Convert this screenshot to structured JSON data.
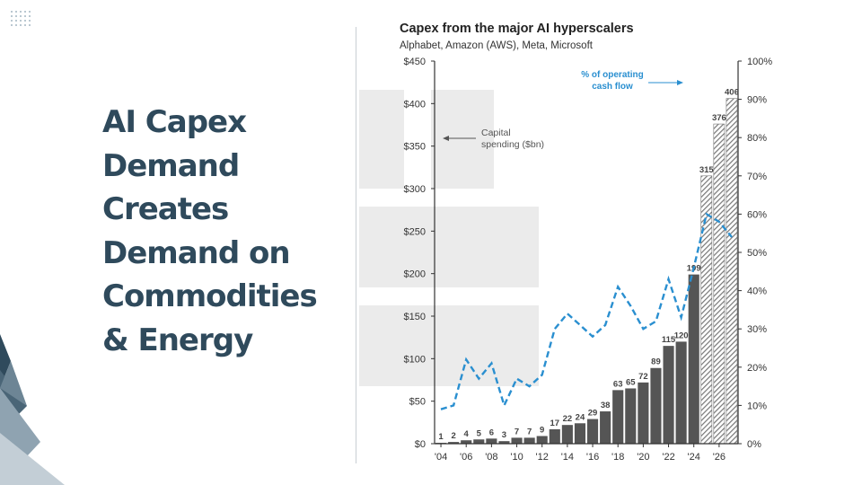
{
  "slide": {
    "headline": "AI Capex Demand Creates Demand on Commodities & Energy"
  },
  "colors": {
    "headline": "#2f4a5c",
    "bar": "#555555",
    "line": "#2a8fd0",
    "hatch": "#777777",
    "watermark": "#ebebeb"
  },
  "chart_data": {
    "type": "bar",
    "title": "Capex from the major AI hyperscalers",
    "subtitle": "Alphabet, Amazon (AWS), Meta, Microsoft",
    "years": [
      "'04",
      "'05",
      "'06",
      "'07",
      "'08",
      "'09",
      "'10",
      "'11",
      "'12",
      "'13",
      "'14",
      "'15",
      "'16",
      "'17",
      "'18",
      "'19",
      "'20",
      "'21",
      "'22",
      "'23",
      "'24",
      "'25",
      "'26",
      "'27"
    ],
    "x_tick_labels": [
      "'04",
      "'06",
      "'08",
      "'10",
      "'12",
      "'14",
      "'16",
      "'18",
      "'20",
      "'22",
      "'24",
      "'26"
    ],
    "series": [
      {
        "name": "Capital spending ($bn)",
        "axis": "left",
        "values": [
          1,
          2,
          4,
          5,
          6,
          3,
          7,
          7,
          9,
          17,
          22,
          24,
          29,
          38,
          63,
          65,
          72,
          89,
          115,
          120,
          199,
          315,
          376,
          406
        ],
        "value_labels": [
          "1",
          "2",
          "4",
          "5",
          "6",
          "3",
          "7",
          "7",
          "9",
          "17",
          "22",
          "24",
          "29",
          "38",
          "63",
          "65",
          "72",
          "89",
          "115",
          "120",
          "199",
          "315",
          "376",
          "406"
        ],
        "estimate_start_index": 21
      },
      {
        "name": "% of operating cash flow",
        "axis": "right",
        "type": "line",
        "style": "dashed",
        "values": [
          9,
          10,
          22,
          17,
          21,
          10,
          17,
          15,
          18,
          30,
          34,
          31,
          28,
          31,
          41,
          36,
          30,
          32,
          43,
          33,
          46,
          60,
          58,
          54
        ]
      }
    ],
    "y_left": {
      "range": [
        0,
        450
      ],
      "tick_labels": [
        "$0",
        "$50",
        "$100",
        "$150",
        "$200",
        "$250",
        "$300",
        "$350",
        "$400",
        "$450"
      ]
    },
    "y_right": {
      "range": [
        0,
        100
      ],
      "tick_labels": [
        "0%",
        "10%",
        "20%",
        "30%",
        "40%",
        "50%",
        "60%",
        "70%",
        "80%",
        "90%",
        "100%"
      ]
    },
    "annotations": {
      "capital_line1": "Capital",
      "capital_line2": "spending ($bn)",
      "ocf_line1": "% of operating",
      "ocf_line2": "cash flow"
    },
    "grid": false
  }
}
